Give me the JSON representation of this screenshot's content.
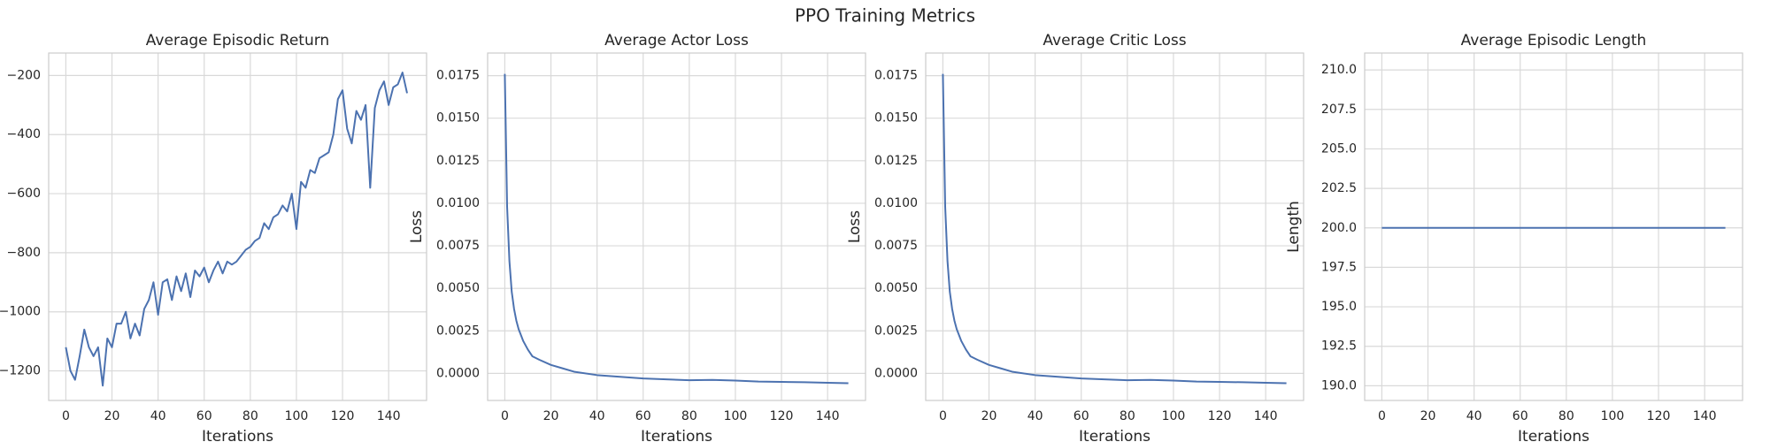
{
  "title": "PPO Training Metrics",
  "chart_data": [
    {
      "type": "line",
      "title": "Average Episodic Return",
      "xlabel": "Iterations",
      "color": "#4c72b0",
      "grid": true,
      "x": [
        0,
        2,
        4,
        6,
        8,
        10,
        12,
        14,
        16,
        18,
        20,
        22,
        24,
        26,
        28,
        30,
        32,
        34,
        36,
        38,
        40,
        42,
        44,
        46,
        48,
        50,
        52,
        54,
        56,
        58,
        60,
        62,
        64,
        66,
        68,
        70,
        72,
        74,
        76,
        78,
        80,
        82,
        84,
        86,
        88,
        90,
        92,
        94,
        96,
        98,
        100,
        102,
        104,
        106,
        108,
        110,
        112,
        114,
        116,
        118,
        120,
        122,
        124,
        126,
        128,
        130,
        132,
        134,
        136,
        138,
        140,
        142,
        144,
        146,
        148
      ],
      "values": [
        -1120,
        -1200,
        -1230,
        -1150,
        -1060,
        -1120,
        -1150,
        -1120,
        -1250,
        -1090,
        -1120,
        -1040,
        -1040,
        -1000,
        -1090,
        -1040,
        -1080,
        -990,
        -960,
        -900,
        -1010,
        -900,
        -890,
        -960,
        -880,
        -930,
        -870,
        -950,
        -860,
        -880,
        -850,
        -900,
        -860,
        -830,
        -870,
        -830,
        -840,
        -830,
        -810,
        -790,
        -780,
        -760,
        -750,
        -700,
        -720,
        -680,
        -670,
        -640,
        -660,
        -600,
        -720,
        -560,
        -580,
        -520,
        -530,
        -480,
        -470,
        -460,
        -400,
        -280,
        -250,
        -380,
        -430,
        -320,
        -350,
        -300,
        -580,
        -310,
        -250,
        -220,
        -300,
        -240,
        -230,
        -190,
        -260
      ],
      "xlim": [
        -7.45,
        156.45
      ],
      "ylim": [
        -1300,
        -124
      ],
      "xticks": [
        0,
        20,
        40,
        60,
        80,
        100,
        120,
        140
      ],
      "yticks": [
        {
          "value": -1200,
          "label": "−1200"
        },
        {
          "value": -1000,
          "label": "−1000"
        },
        {
          "value": -800,
          "label": "−800"
        },
        {
          "value": -600,
          "label": "−600"
        },
        {
          "value": -400,
          "label": "−400"
        },
        {
          "value": -200,
          "label": "−200"
        }
      ]
    },
    {
      "type": "line",
      "title": "Average Actor Loss",
      "xlabel": "Iterations",
      "ylabel": "Loss",
      "color": "#4c72b0",
      "grid": true,
      "x": [
        0,
        1,
        2,
        3,
        4,
        5,
        6,
        8,
        10,
        12,
        15,
        20,
        25,
        30,
        40,
        50,
        60,
        70,
        80,
        90,
        100,
        110,
        120,
        130,
        140,
        149
      ],
      "values": [
        0.0176,
        0.0098,
        0.0066,
        0.0048,
        0.0038,
        0.0031,
        0.0026,
        0.0019,
        0.0014,
        0.001,
        0.0008,
        0.0005,
        0.0003,
        0.0001,
        -0.0001,
        -0.0002,
        -0.0003,
        -0.00035,
        -0.0004,
        -0.00038,
        -0.00042,
        -0.00048,
        -0.0005,
        -0.00052,
        -0.00055,
        -0.00058
      ],
      "xlim": [
        -7.45,
        156.45
      ],
      "ylim": [
        -0.00159,
        0.01883
      ],
      "xticks": [
        0,
        20,
        40,
        60,
        80,
        100,
        120,
        140
      ],
      "yticks": [
        {
          "value": 0,
          "label": "0.0000"
        },
        {
          "value": 0.0025,
          "label": "0.0025"
        },
        {
          "value": 0.005,
          "label": "0.0050"
        },
        {
          "value": 0.0075,
          "label": "0.0075"
        },
        {
          "value": 0.01,
          "label": "0.0100"
        },
        {
          "value": 0.0125,
          "label": "0.0125"
        },
        {
          "value": 0.015,
          "label": "0.0150"
        },
        {
          "value": 0.0175,
          "label": "0.0175"
        }
      ]
    },
    {
      "type": "line",
      "title": "Average Critic Loss",
      "xlabel": "Iterations",
      "ylabel": "Loss",
      "color": "#4c72b0",
      "grid": true,
      "x": [
        0,
        1,
        2,
        3,
        4,
        5,
        6,
        8,
        10,
        12,
        15,
        20,
        25,
        30,
        40,
        50,
        60,
        70,
        80,
        90,
        100,
        110,
        120,
        130,
        140,
        149
      ],
      "values": [
        0.0176,
        0.0098,
        0.0066,
        0.0048,
        0.0038,
        0.0031,
        0.0026,
        0.0019,
        0.0014,
        0.001,
        0.0008,
        0.0005,
        0.0003,
        0.0001,
        -0.0001,
        -0.0002,
        -0.0003,
        -0.00035,
        -0.0004,
        -0.00038,
        -0.00042,
        -0.00048,
        -0.0005,
        -0.00052,
        -0.00055,
        -0.00058
      ],
      "xlim": [
        -7.45,
        156.45
      ],
      "ylim": [
        -0.00159,
        0.01883
      ],
      "xticks": [
        0,
        20,
        40,
        60,
        80,
        100,
        120,
        140
      ],
      "yticks": [
        {
          "value": 0,
          "label": "0.0000"
        },
        {
          "value": 0.0025,
          "label": "0.0025"
        },
        {
          "value": 0.005,
          "label": "0.0050"
        },
        {
          "value": 0.0075,
          "label": "0.0075"
        },
        {
          "value": 0.01,
          "label": "0.0100"
        },
        {
          "value": 0.0125,
          "label": "0.0125"
        },
        {
          "value": 0.015,
          "label": "0.0150"
        },
        {
          "value": 0.0175,
          "label": "0.0175"
        }
      ]
    },
    {
      "type": "line",
      "title": "Average Episodic Length",
      "xlabel": "Iterations",
      "ylabel": "Length",
      "color": "#4c72b0",
      "grid": true,
      "x": [
        0,
        149
      ],
      "values": [
        200,
        200
      ],
      "xlim": [
        -7.45,
        156.45
      ],
      "ylim": [
        189.07,
        211.07
      ],
      "xticks": [
        0,
        20,
        40,
        60,
        80,
        100,
        120,
        140
      ],
      "yticks": [
        {
          "value": 190,
          "label": "190.0"
        },
        {
          "value": 192.5,
          "label": "192.5"
        },
        {
          "value": 195,
          "label": "195.0"
        },
        {
          "value": 197.5,
          "label": "197.5"
        },
        {
          "value": 200,
          "label": "200.0"
        },
        {
          "value": 202.5,
          "label": "202.5"
        },
        {
          "value": 205,
          "label": "205.0"
        },
        {
          "value": 207.5,
          "label": "207.5"
        },
        {
          "value": 210,
          "label": "210.0"
        }
      ]
    }
  ]
}
